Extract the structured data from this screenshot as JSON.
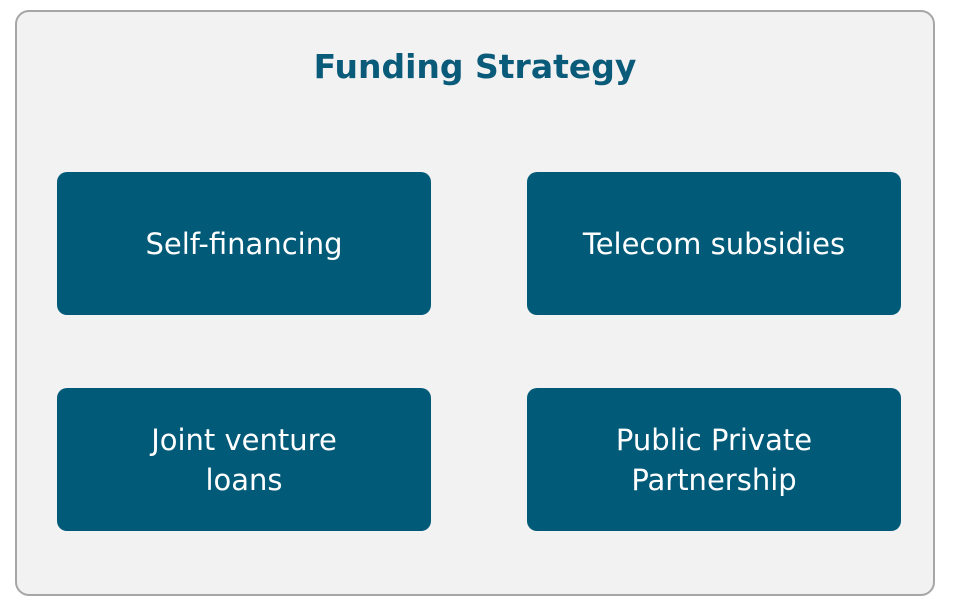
{
  "title": "Funding Strategy",
  "items": [
    {
      "label": "Self-financing"
    },
    {
      "label": "Telecom subsidies"
    },
    {
      "label": "Joint venture\nloans"
    },
    {
      "label": "Public Private\nPartnership"
    }
  ],
  "colors": {
    "title": "#0a5a7a",
    "box": "#005a78",
    "panel": "#f2f2f2",
    "border": "#a6a6a6"
  }
}
